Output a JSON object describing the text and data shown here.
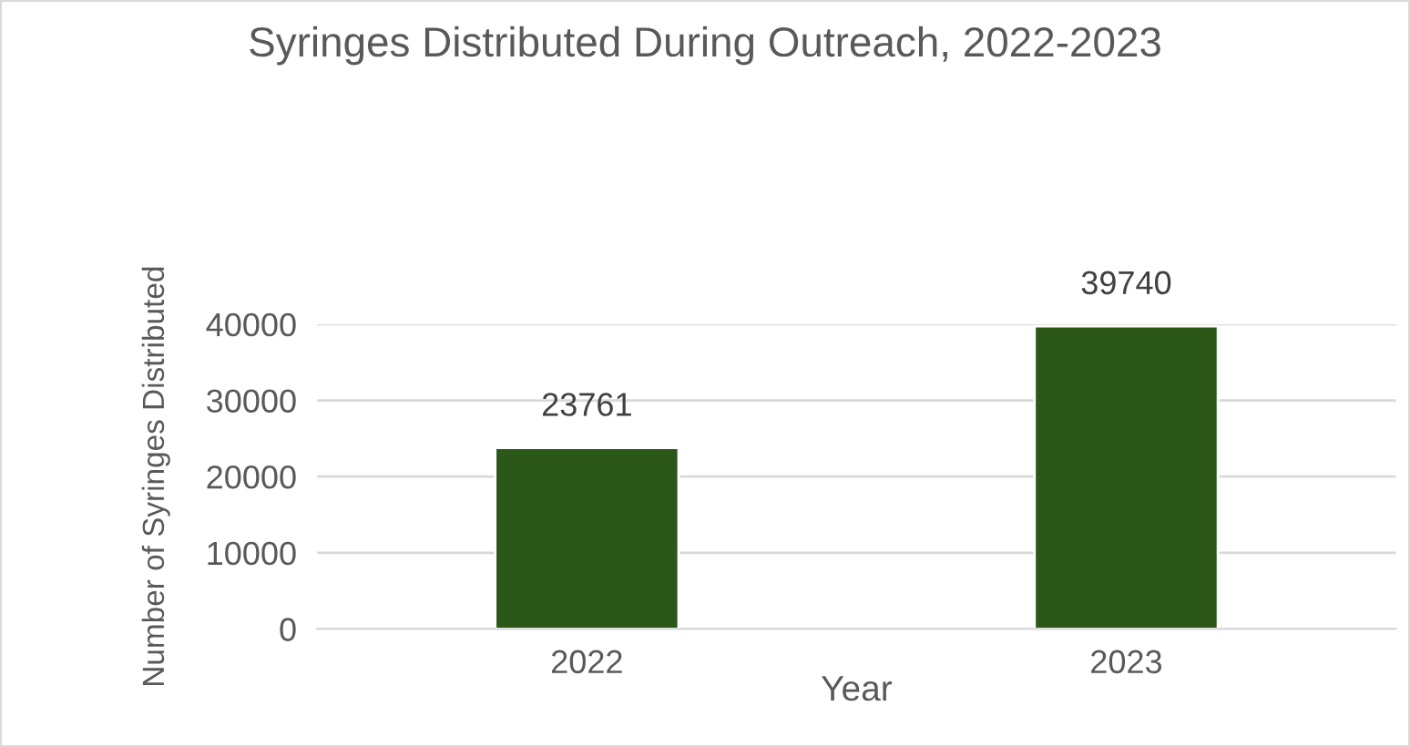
{
  "chart_data": {
    "type": "bar",
    "title": "Syringes Distributed During Outreach, 2022-2023",
    "xlabel": "Year",
    "ylabel": "Number of Syringes Distributed",
    "categories": [
      "2022",
      "2023"
    ],
    "values": [
      23761,
      39740
    ],
    "color": "#2b5719",
    "ylim": [
      0,
      40000
    ],
    "yticks": [
      0,
      10000,
      20000,
      30000,
      40000
    ],
    "grid": "y",
    "data_labels": true
  }
}
